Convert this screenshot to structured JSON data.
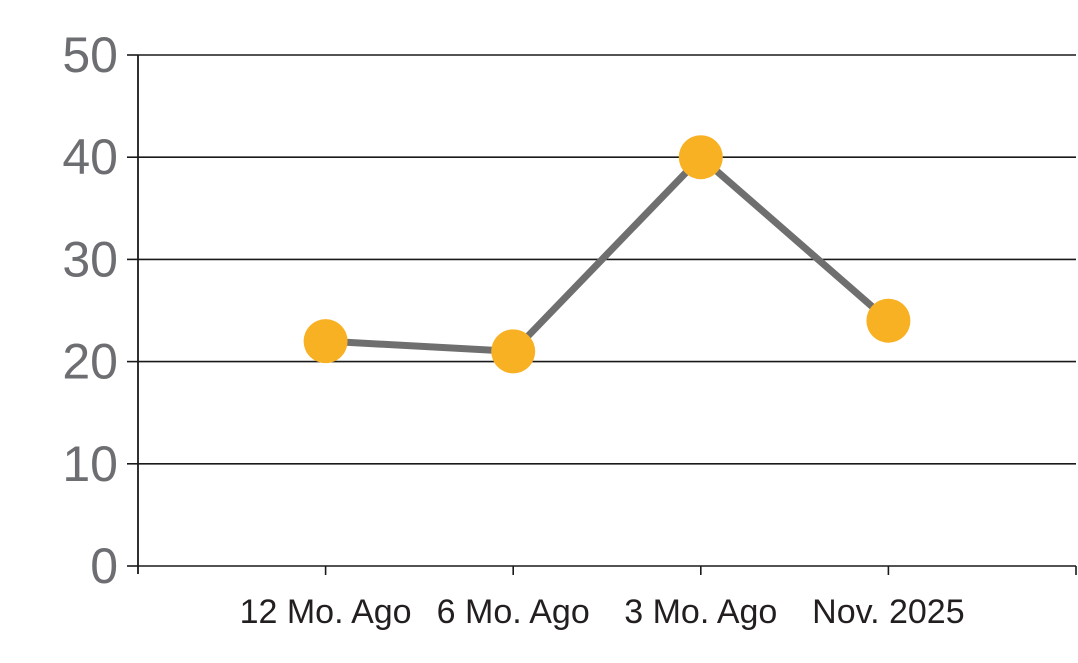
{
  "chart_data": {
    "type": "line",
    "categories": [
      "12 Mo. Ago",
      "6 Mo. Ago",
      "3 Mo. Ago",
      "Nov. 2025"
    ],
    "series": [
      {
        "name": "value",
        "values": [
          22,
          21,
          40,
          24
        ]
      }
    ],
    "title": "",
    "xlabel": "",
    "ylabel": "",
    "ylim": [
      0,
      50
    ],
    "yticks": [
      0,
      10,
      20,
      30,
      40,
      50
    ],
    "grid": "horizontal",
    "legend": "none",
    "colors": {
      "marker": "#F9B124",
      "line": "#6F6F6F",
      "grid": "#1A1A1A",
      "axis": "#1A1A1A",
      "ytick_text": "#6D6E71",
      "xtick_text": "#231F20",
      "background": "#FFFFFF"
    }
  }
}
